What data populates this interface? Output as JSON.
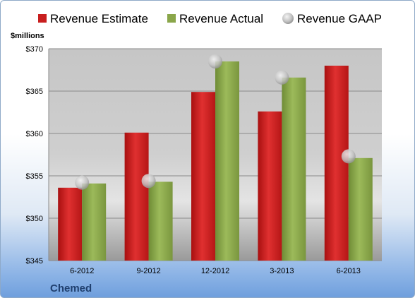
{
  "chart_data": {
    "type": "bar",
    "categories": [
      "6-2012",
      "9-2012",
      "12-2012",
      "3-2013",
      "6-2013"
    ],
    "series": [
      {
        "name": "Revenue Estimate",
        "type": "bar",
        "values": [
          353.6,
          360.1,
          364.9,
          362.6,
          368.0
        ]
      },
      {
        "name": "Revenue Actual",
        "type": "bar",
        "values": [
          354.1,
          354.3,
          368.5,
          366.6,
          357.1
        ]
      },
      {
        "name": "Revenue GAAP",
        "type": "scatter",
        "values": [
          354.2,
          354.4,
          368.5,
          366.6,
          357.3
        ]
      }
    ],
    "ylabel": "$millions",
    "ylim": [
      345,
      370
    ],
    "yticks": [
      345,
      350,
      355,
      360,
      365,
      370
    ],
    "ytick_labels": [
      "$345",
      "$350",
      "$355",
      "$360",
      "$365",
      "$370"
    ],
    "grid": true,
    "legend": "top",
    "company": "Chemed",
    "colors": {
      "estimate": "#c81e1e",
      "actual": "#8aa64a",
      "gaap": "#c8c8c8"
    }
  }
}
